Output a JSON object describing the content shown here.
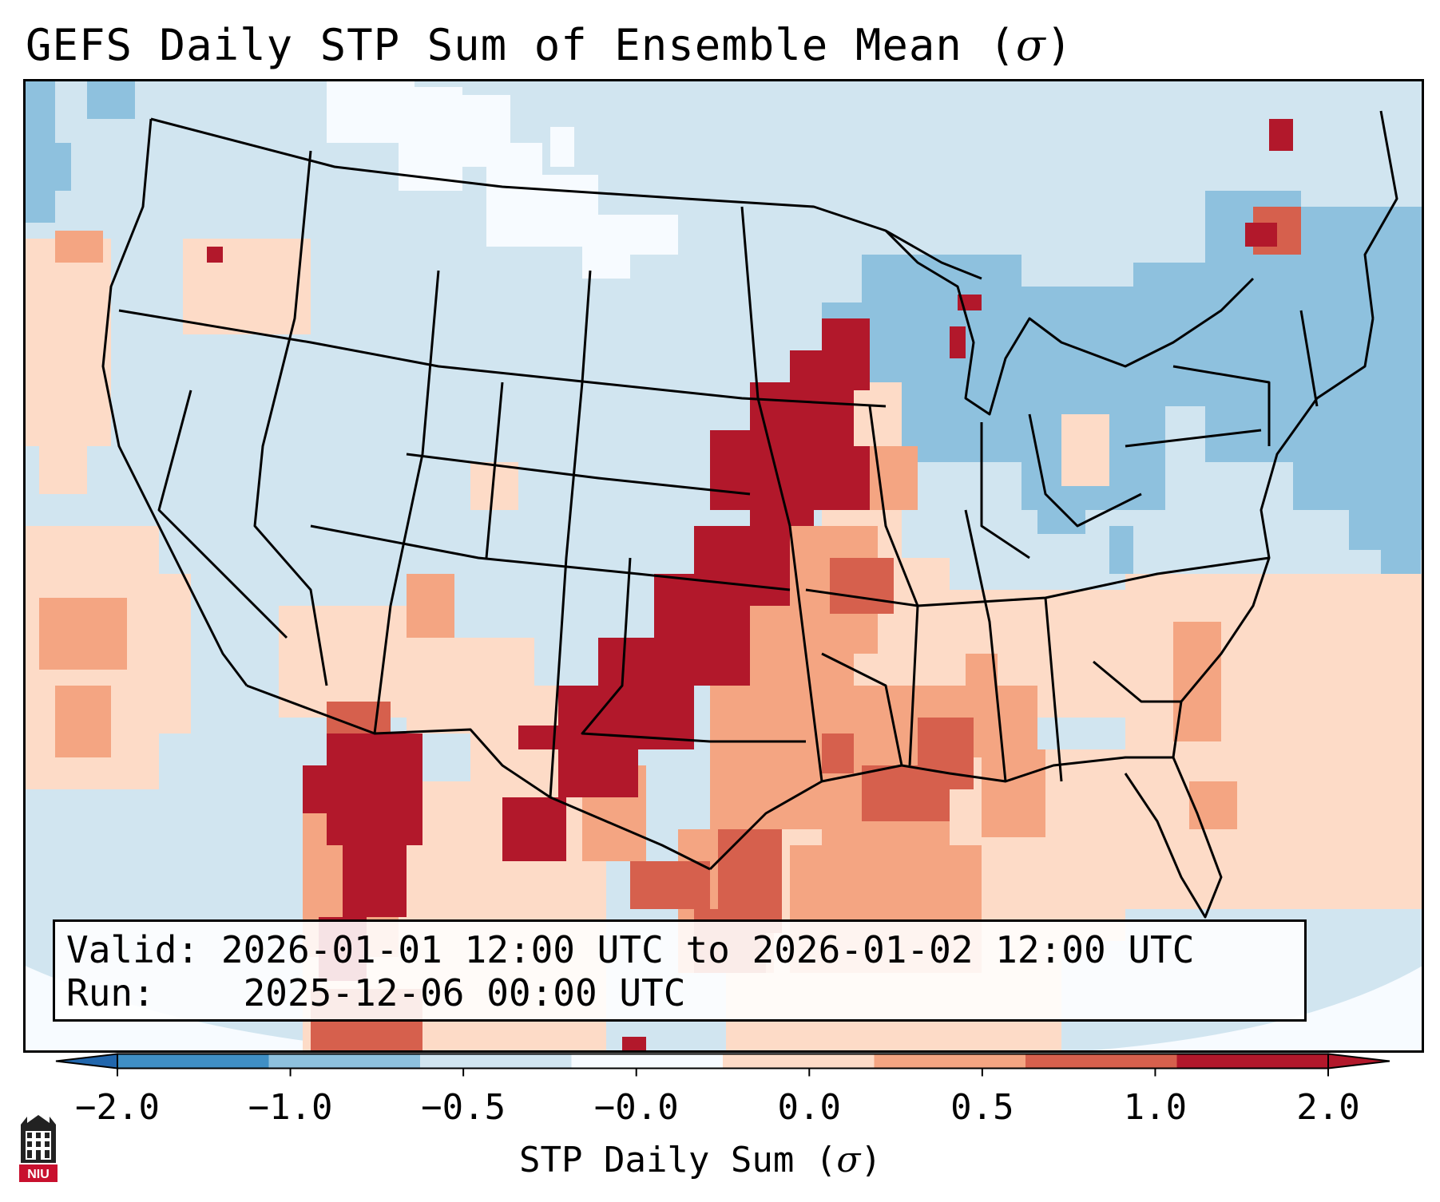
{
  "title": {
    "text": "GEFS Daily STP Sum of Ensemble Mean",
    "unit": "σ"
  },
  "info": {
    "valid_label": "Valid:",
    "valid_value": "2026-01-01 12:00 UTC to 2026-01-02 12:00 UTC",
    "run_label": "Run:",
    "run_value": "2025-12-06 00:00 UTC"
  },
  "colorbar": {
    "label_text": "STP Daily Sum",
    "label_unit": "σ",
    "ticks": [
      "−2.0",
      "−1.0",
      "−0.5",
      "−0.0",
      "0.0",
      "0.5",
      "1.0",
      "2.0"
    ],
    "colors": [
      "#3f8fc5",
      "#8ec1de",
      "#d1e5f0",
      "#f7fbff",
      "#fddbc7",
      "#f4a582",
      "#d6604d",
      "#b2182b"
    ],
    "extend": "both"
  },
  "map": {
    "projection": "conic",
    "region": "CONUS",
    "background_color": "#d1e5f0",
    "border_color": "#000000",
    "logo": "NIU",
    "logo_icon": "niu-building-icon"
  }
}
